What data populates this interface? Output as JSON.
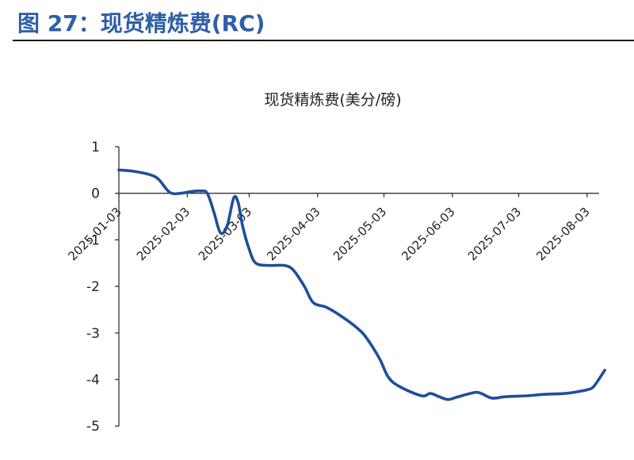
{
  "header": {
    "figure_title": "图 27：现货精炼费(RC)"
  },
  "chart_data": {
    "type": "line",
    "title": "现货精炼费(美分/磅)",
    "xlabel": "",
    "ylabel": "",
    "ylim": [
      -5,
      1
    ],
    "yticks": [
      1,
      0,
      -1,
      -2,
      -3,
      -4,
      -5
    ],
    "xlim": [
      "2025-01-03",
      "2025-08-07"
    ],
    "xticks": [
      "2025-01-03",
      "2025-02-03",
      "2025-03-03",
      "2025-04-03",
      "2025-05-03",
      "2025-06-03",
      "2025-07-03",
      "2025-08-03"
    ],
    "grid": false,
    "line_color": "#1f4e9c",
    "series": [
      {
        "name": "",
        "points": [
          [
            "2025-01-03",
            0.5
          ],
          [
            "2025-01-10",
            0.47
          ],
          [
            "2025-01-17",
            0.4
          ],
          [
            "2025-01-21",
            0.3
          ],
          [
            "2025-01-26",
            0.02
          ],
          [
            "2025-01-31",
            0.0
          ],
          [
            "2025-02-05",
            0.04
          ],
          [
            "2025-02-09",
            0.05
          ],
          [
            "2025-02-12",
            0.0
          ],
          [
            "2025-02-15",
            -0.4
          ],
          [
            "2025-02-18",
            -0.85
          ],
          [
            "2025-02-21",
            -0.7
          ],
          [
            "2025-02-24",
            -0.1
          ],
          [
            "2025-02-26",
            -0.2
          ],
          [
            "2025-02-28",
            -0.7
          ],
          [
            "2025-03-03",
            -1.2
          ],
          [
            "2025-03-06",
            -1.5
          ],
          [
            "2025-03-12",
            -1.55
          ],
          [
            "2025-03-19",
            -1.55
          ],
          [
            "2025-03-23",
            -1.65
          ],
          [
            "2025-03-28",
            -2.0
          ],
          [
            "2025-04-01",
            -2.35
          ],
          [
            "2025-04-07",
            -2.45
          ],
          [
            "2025-04-14",
            -2.65
          ],
          [
            "2025-04-21",
            -2.9
          ],
          [
            "2025-04-25",
            -3.1
          ],
          [
            "2025-05-01",
            -3.55
          ],
          [
            "2025-05-05",
            -3.95
          ],
          [
            "2025-05-10",
            -4.15
          ],
          [
            "2025-05-20",
            -4.35
          ],
          [
            "2025-05-24",
            -4.3
          ],
          [
            "2025-05-28",
            -4.37
          ],
          [
            "2025-06-01",
            -4.43
          ],
          [
            "2025-06-05",
            -4.38
          ],
          [
            "2025-06-13",
            -4.28
          ],
          [
            "2025-06-16",
            -4.3
          ],
          [
            "2025-06-21",
            -4.4
          ],
          [
            "2025-06-27",
            -4.37
          ],
          [
            "2025-07-07",
            -4.35
          ],
          [
            "2025-07-14",
            -4.32
          ],
          [
            "2025-07-24",
            -4.3
          ],
          [
            "2025-07-31",
            -4.25
          ],
          [
            "2025-08-03",
            -4.22
          ],
          [
            "2025-08-06",
            -4.15
          ],
          [
            "2025-08-11",
            -3.8
          ]
        ]
      }
    ]
  }
}
